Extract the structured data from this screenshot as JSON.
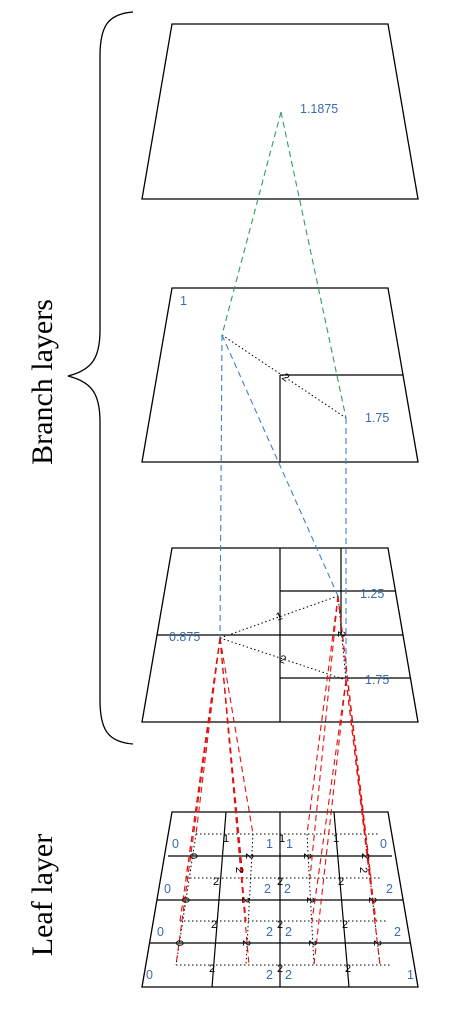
{
  "side_labels": {
    "branch": "Branch layers",
    "leaf": "Leaf layer"
  },
  "colors": {
    "top_link": "#2ca05a",
    "middle_link": "#3b7fd0",
    "leaf_link": "#e31010",
    "value_text": "#3a6cb0"
  },
  "layers": {
    "top": {
      "value": "1.1875"
    },
    "middle": {
      "value_left": "1",
      "value_right": "1.75",
      "edge_weight": "2"
    },
    "bottom": {
      "value_left": "0.875",
      "value_upper_right": "1.25",
      "value_lower_right": "1.75",
      "edge_weight_upper": "1",
      "edge_weight_lower": "2",
      "edge_weight_vertical": "2"
    },
    "leaf": {
      "cell_values": [
        "0",
        "1",
        "1",
        "0",
        "0",
        "2",
        "2",
        "2",
        "0",
        "2",
        "2",
        "2",
        "0",
        "2",
        "2",
        "1"
      ],
      "edge_weights": [
        "1",
        "1",
        "1",
        "0",
        "2",
        "2",
        "2",
        "2",
        "2",
        "2",
        "0",
        "2",
        "2",
        "2",
        "2",
        "2",
        "2",
        "0",
        "2",
        "2",
        "2",
        "2",
        "2",
        "2",
        "2",
        "2"
      ]
    }
  }
}
